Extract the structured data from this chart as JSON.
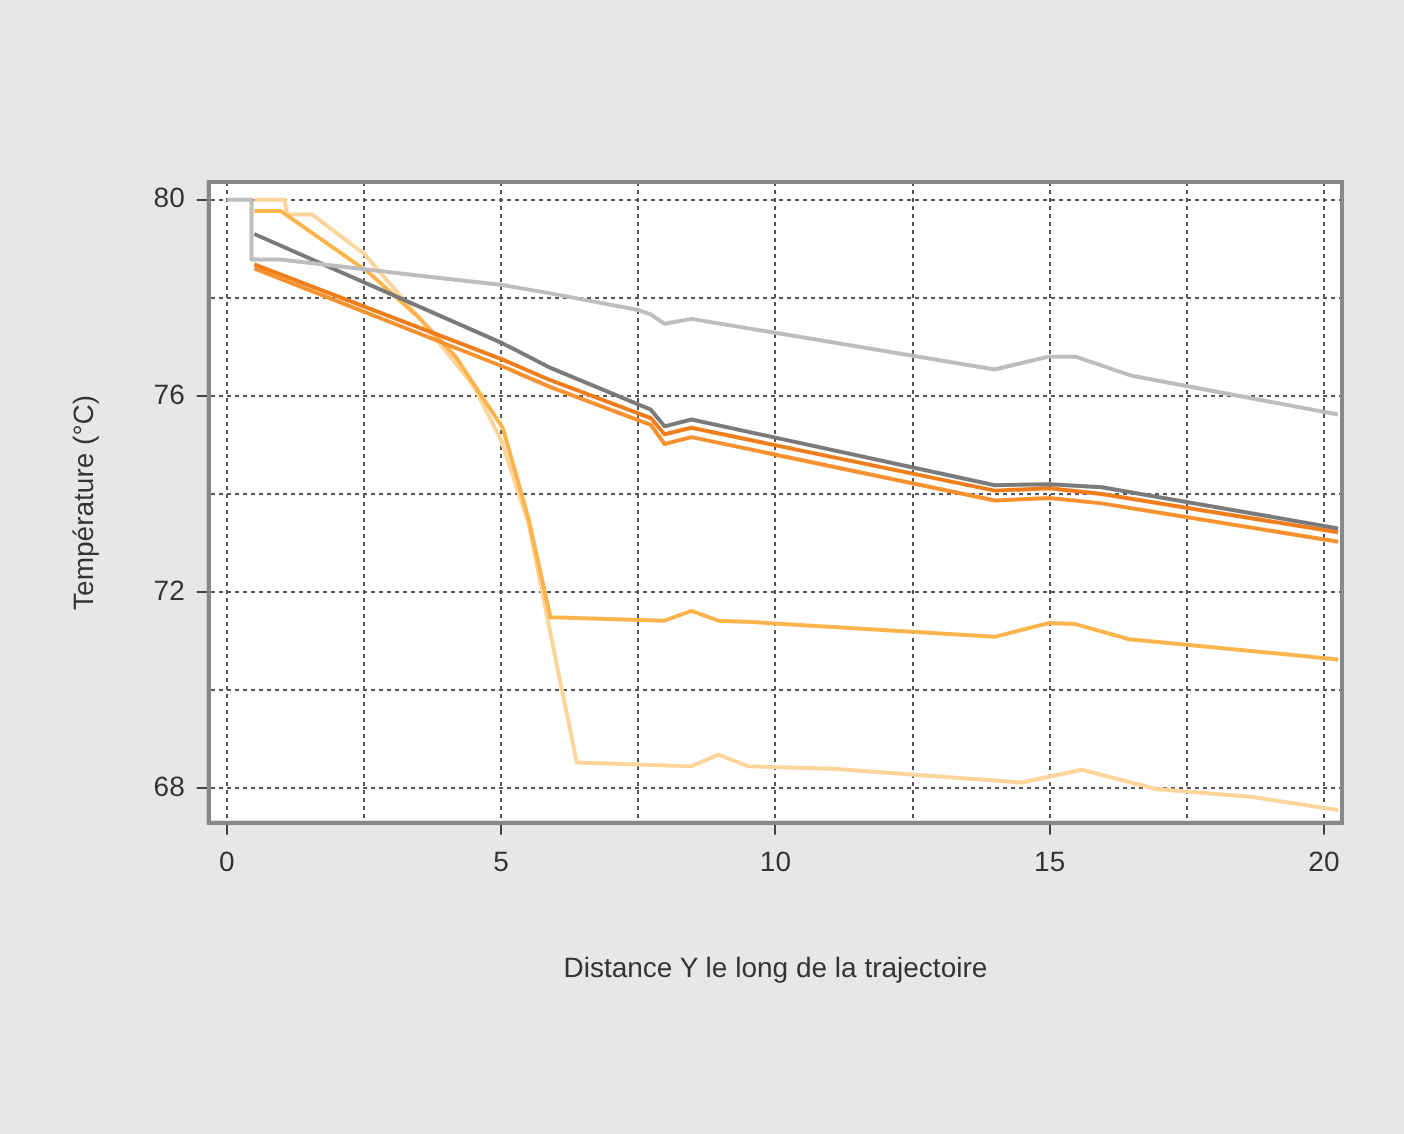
{
  "chart_data": {
    "type": "line",
    "xlabel": "Distance Y le long de la trajectoire",
    "ylabel": "Température (°C)",
    "xlim": [
      -0.33,
      20.33
    ],
    "ylim": [
      67.3,
      80.36
    ],
    "xticks": [
      0,
      {
        "value": 2.5,
        "label": null
      },
      5,
      {
        "value": 7.5,
        "label": null
      },
      10,
      {
        "value": 12.5,
        "label": null
      },
      15,
      {
        "value": 17.5,
        "label": null
      },
      20
    ],
    "yticks": [
      68,
      {
        "value": 70,
        "label": null
      },
      72,
      {
        "value": 74,
        "label": null
      },
      76,
      {
        "value": 78,
        "label": null
      },
      80
    ],
    "grid": true,
    "legend": false,
    "line_style": "solid",
    "marker": "none",
    "series": [
      {
        "color": "#bdbdbd",
        "x": [
          0,
          0.45,
          0.45,
          0.98,
          3.68,
          5.03,
          5.9,
          7.5,
          7.73,
          7.98,
          8.47,
          10.3,
          14.0,
          14.98,
          15.47,
          16.5,
          20.26
        ],
        "values": [
          80,
          80,
          78.78,
          78.78,
          78.43,
          78.26,
          78.09,
          77.75,
          77.66,
          77.47,
          77.57,
          77.23,
          76.54,
          76.8,
          76.8,
          76.41,
          75.62
        ]
      },
      {
        "color": "#7a7a7a",
        "x": [
          0.5,
          5.03,
          5.9,
          7.73,
          7.98,
          8.47,
          14.0,
          15.0,
          15.95,
          20.26
        ],
        "values": [
          79.3,
          77.07,
          76.57,
          75.72,
          75.38,
          75.52,
          74.18,
          74.2,
          74.14,
          73.3
        ]
      },
      {
        "color": "#ef7d1a",
        "x": [
          0.5,
          5.03,
          5.9,
          7.73,
          7.98,
          8.47,
          14.0,
          15.0,
          15.95,
          20.26
        ],
        "values": [
          78.68,
          76.74,
          76.32,
          75.55,
          75.22,
          75.35,
          74.07,
          74.12,
          74.0,
          73.22
        ]
      },
      {
        "color": "#f5922f",
        "x": [
          0.5,
          5.03,
          5.9,
          7.73,
          7.98,
          8.47,
          14.0,
          15.0,
          15.95,
          20.26
        ],
        "values": [
          78.6,
          76.6,
          76.18,
          75.41,
          75.02,
          75.16,
          73.87,
          73.92,
          73.81,
          73.03
        ]
      },
      {
        "color": "#fbb34c",
        "x": [
          0.5,
          0.98,
          2.58,
          3.5,
          4.17,
          5.03,
          5.5,
          5.9,
          7.98,
          8.47,
          8.96,
          9.58,
          14.0,
          14.98,
          15.47,
          16.45,
          20.26
        ],
        "values": [
          79.77,
          79.77,
          78.52,
          77.6,
          76.8,
          75.35,
          73.5,
          71.49,
          71.42,
          71.62,
          71.42,
          71.39,
          71.09,
          71.37,
          71.35,
          71.04,
          70.63
        ]
      },
      {
        "color": "#fdd49a",
        "x": [
          0.5,
          1.05,
          1.1,
          1.55,
          2.5,
          3.5,
          4.5,
          5.0,
          5.5,
          6.0,
          6.38,
          8.47,
          8.96,
          9.51,
          11.05,
          14.49,
          15.59,
          16.94,
          18.66,
          20.26
        ],
        "values": [
          80,
          80,
          79.7,
          79.7,
          78.9,
          77.6,
          76.2,
          75.1,
          73.4,
          70.6,
          68.53,
          68.45,
          68.69,
          68.45,
          68.4,
          68.12,
          68.38,
          67.99,
          67.83,
          67.56
        ]
      }
    ]
  }
}
